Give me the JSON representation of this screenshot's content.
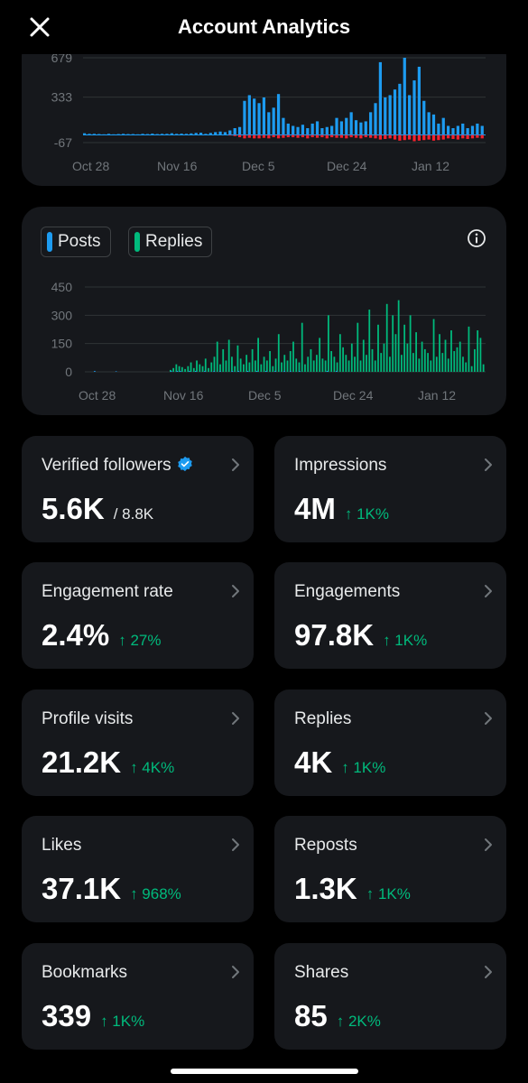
{
  "header": {
    "title": "Account Analytics",
    "close_icon": "close-icon"
  },
  "chart_data": [
    {
      "type": "bar",
      "y_ticks": [
        "679",
        "333",
        "-67"
      ],
      "x_ticks": [
        "Oct 28",
        "Nov 16",
        "Dec 5",
        "Dec 24",
        "Jan 12"
      ],
      "ylim": [
        -67,
        679
      ],
      "series": [
        {
          "color": "#1d9bf0",
          "values": [
            15,
            10,
            10,
            8,
            6,
            10,
            6,
            8,
            10,
            8,
            8,
            6,
            10,
            8,
            12,
            8,
            10,
            10,
            15,
            10,
            12,
            10,
            14,
            18,
            20,
            10,
            18,
            25,
            30,
            25,
            40,
            60,
            70,
            300,
            350,
            320,
            280,
            330,
            200,
            240,
            360,
            150,
            100,
            80,
            70,
            90,
            60,
            100,
            120,
            60,
            70,
            80,
            150,
            120,
            150,
            200,
            130,
            110,
            120,
            200,
            280,
            640,
            330,
            350,
            400,
            450,
            679,
            350,
            480,
            600,
            300,
            200,
            180,
            100,
            150,
            80,
            60,
            80,
            100,
            60,
            80,
            100,
            80
          ]
        },
        {
          "color": "#f4212e",
          "values": [
            0,
            0,
            0,
            0,
            0,
            0,
            0,
            0,
            0,
            0,
            0,
            0,
            0,
            0,
            0,
            0,
            0,
            0,
            0,
            0,
            0,
            0,
            0,
            0,
            0,
            0,
            0,
            0,
            0,
            0,
            -5,
            -10,
            -20,
            -30,
            -25,
            -30,
            -30,
            -25,
            -30,
            -20,
            -30,
            -25,
            -20,
            -20,
            -25,
            -20,
            -30,
            -20,
            -25,
            -20,
            -30,
            -20,
            -25,
            -25,
            -30,
            -20,
            -25,
            -30,
            -20,
            -25,
            -30,
            -40,
            -35,
            -30,
            -40,
            -50,
            -45,
            -40,
            -55,
            -50,
            -45,
            -40,
            -50,
            -45,
            -40,
            -30,
            -35,
            -40,
            -30,
            -35,
            -30,
            -25,
            -30
          ]
        }
      ]
    },
    {
      "type": "bar",
      "legend": [
        "Posts",
        "Replies"
      ],
      "y_ticks": [
        "450",
        "300",
        "150",
        "0"
      ],
      "x_ticks": [
        "Oct 28",
        "Nov 16",
        "Dec 5",
        "Dec 24",
        "Jan 12"
      ],
      "ylim": [
        0,
        450
      ],
      "series": [
        {
          "name": "Posts",
          "color": "#1d9bf0",
          "values": [
            0,
            0,
            0,
            5,
            0,
            0,
            0,
            0,
            0,
            0,
            3,
            0,
            0,
            0,
            0,
            0,
            0,
            0,
            0,
            0,
            0,
            0,
            0,
            0,
            0,
            0,
            0,
            0,
            5,
            0,
            5,
            5,
            0,
            0,
            5,
            0,
            5,
            0,
            0,
            5,
            0,
            0,
            5,
            0,
            5,
            0,
            0,
            0,
            5,
            0,
            5,
            0,
            0,
            5,
            0,
            0,
            5,
            0,
            0,
            5,
            0,
            0,
            5,
            0,
            0,
            5,
            0,
            5,
            0,
            0,
            5,
            0,
            0,
            0,
            0,
            0,
            0,
            0,
            0,
            5,
            0,
            0,
            5,
            0,
            0,
            0,
            0,
            0,
            0,
            0,
            0,
            0,
            0,
            0,
            0,
            0,
            0,
            0,
            0,
            0,
            0,
            0,
            0,
            0,
            0,
            0,
            0,
            0,
            0,
            0,
            0,
            0,
            0,
            0,
            0,
            0,
            0,
            0,
            0,
            0,
            0,
            0,
            0,
            0,
            0,
            0,
            0,
            0,
            0,
            0,
            0
          ]
        },
        {
          "name": "Replies",
          "color": "#00ba7c",
          "values": [
            0,
            0,
            0,
            0,
            0,
            0,
            0,
            0,
            0,
            0,
            0,
            0,
            0,
            0,
            0,
            0,
            0,
            0,
            0,
            0,
            0,
            0,
            0,
            0,
            0,
            0,
            0,
            0,
            0,
            10,
            20,
            40,
            30,
            25,
            15,
            30,
            50,
            20,
            60,
            40,
            30,
            70,
            20,
            50,
            80,
            160,
            40,
            120,
            60,
            170,
            80,
            30,
            140,
            70,
            40,
            90,
            50,
            120,
            60,
            180,
            40,
            80,
            60,
            110,
            30,
            70,
            200,
            50,
            90,
            60,
            110,
            160,
            70,
            50,
            260,
            40,
            80,
            120,
            60,
            90,
            180,
            70,
            60,
            300,
            110,
            80,
            50,
            200,
            130,
            90,
            60,
            150,
            80,
            260,
            60,
            170,
            90,
            330,
            120,
            60,
            250,
            100,
            150,
            360,
            80,
            300,
            200,
            380,
            90,
            250,
            150,
            300,
            100,
            210,
            70,
            160,
            120,
            100,
            60,
            280,
            80,
            200,
            100,
            170,
            70,
            220,
            110,
            130,
            160,
            80,
            50,
            240,
            30,
            120,
            220,
            180,
            40
          ]
        }
      ]
    }
  ],
  "legend": {
    "posts_label": "Posts",
    "replies_label": "Replies"
  },
  "stats": [
    {
      "label": "Verified followers",
      "value": "5.6K",
      "sub": "/ 8.8K"
    },
    {
      "label": "Impressions",
      "value": "4M",
      "change": "↑ 1K%"
    },
    {
      "label": "Engagement rate",
      "value": "2.4%",
      "change": "↑ 27%"
    },
    {
      "label": "Engagements",
      "value": "97.8K",
      "change": "↑ 1K%"
    },
    {
      "label": "Profile visits",
      "value": "21.2K",
      "change": "↑ 4K%"
    },
    {
      "label": "Replies",
      "value": "4K",
      "change": "↑ 1K%"
    },
    {
      "label": "Likes",
      "value": "37.1K",
      "change": "↑ 968%"
    },
    {
      "label": "Reposts",
      "value": "1.3K",
      "change": "↑ 1K%"
    },
    {
      "label": "Bookmarks",
      "value": "339",
      "change": "↑ 1K%"
    },
    {
      "label": "Shares",
      "value": "85",
      "change": "↑ 2K%"
    }
  ]
}
